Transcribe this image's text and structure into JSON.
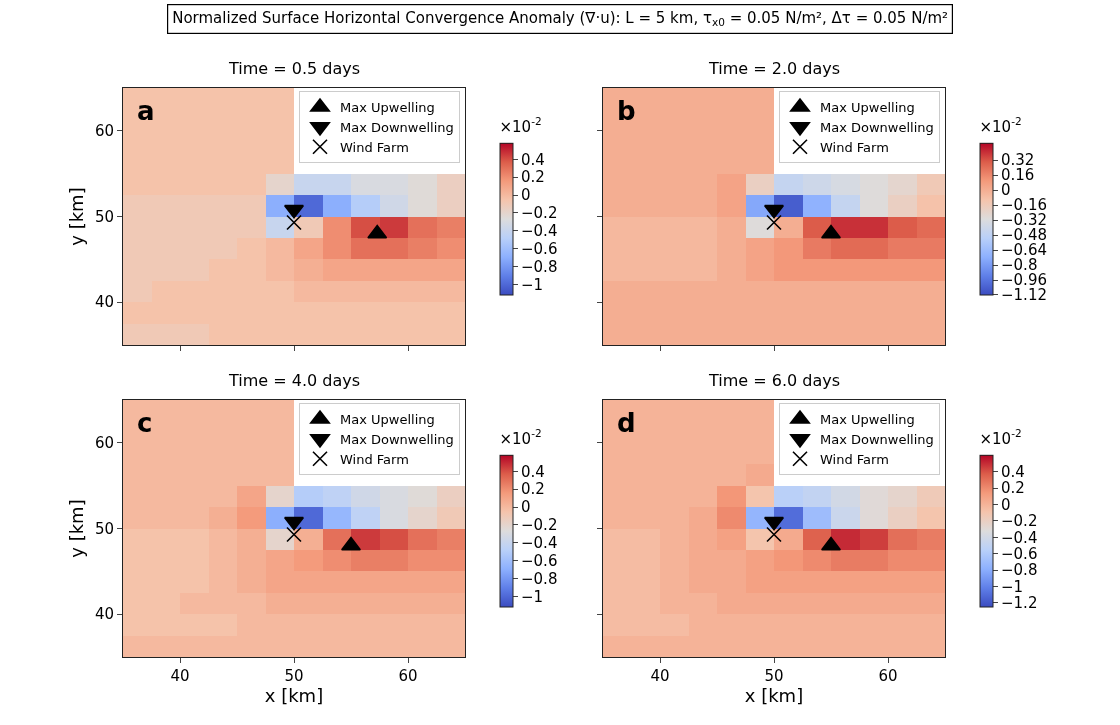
{
  "chart_data": [
    {
      "type": "heatmap",
      "title": "Time = 0.5 days",
      "ylabel": "y [km]",
      "clabel": "×10$^{-2}$",
      "annotations": [
        "Normalized Surface Horizontal Convergence Anomaly (∇·u): L = 5 km, τ$_{x0}$ = 0.05 N/m², Δτ = 0.05 N/m²",
        "a"
      ],
      "x": [
        36.25,
        38.75,
        41.25,
        43.75,
        46.25,
        48.75,
        51.25,
        53.75,
        56.25,
        58.75,
        61.25,
        63.75
      ],
      "y": [
        63.75,
        61.25,
        58.75,
        56.25,
        53.75,
        51.25,
        48.75,
        46.25,
        43.75,
        41.25,
        38.75,
        36.25
      ],
      "cells": [
        [
          -0.05,
          -0.05,
          -0.05,
          -0.05,
          -0.05,
          -0.05,
          null,
          null,
          null,
          null,
          null,
          null
        ],
        [
          -0.05,
          -0.05,
          -0.05,
          -0.05,
          -0.05,
          -0.05,
          null,
          null,
          null,
          null,
          null,
          null
        ],
        [
          -0.05,
          -0.05,
          -0.05,
          -0.05,
          -0.05,
          -0.05,
          null,
          null,
          null,
          null,
          null,
          null
        ],
        [
          -0.05,
          -0.05,
          -0.05,
          -0.05,
          -0.05,
          -0.05,
          null,
          null,
          null,
          null,
          null,
          null
        ],
        [
          -0.05,
          -0.05,
          -0.05,
          -0.05,
          -0.05,
          -0.2,
          -0.4,
          -0.4,
          -0.3,
          -0.3,
          -0.25,
          -0.15
        ],
        [
          -0.1,
          -0.1,
          -0.1,
          -0.1,
          -0.1,
          -0.7,
          -1.0,
          -0.7,
          -0.5,
          -0.35,
          -0.25,
          -0.15
        ],
        [
          -0.1,
          -0.1,
          -0.1,
          -0.1,
          -0.1,
          -0.4,
          -0.1,
          0.2,
          0.4,
          0.45,
          0.3,
          0.25
        ],
        [
          -0.1,
          -0.1,
          -0.1,
          -0.1,
          -0.05,
          0.0,
          0.1,
          0.2,
          0.3,
          0.3,
          0.25,
          0.2
        ],
        [
          -0.1,
          -0.1,
          -0.1,
          -0.05,
          -0.05,
          0.0,
          0.05,
          0.1,
          0.1,
          0.1,
          0.1,
          0.1
        ],
        [
          -0.1,
          -0.05,
          -0.05,
          -0.05,
          -0.05,
          -0.05,
          0.0,
          0.0,
          0.0,
          0.0,
          0.0,
          0.0
        ],
        [
          -0.05,
          -0.05,
          -0.05,
          -0.05,
          -0.05,
          -0.05,
          -0.05,
          -0.05,
          -0.05,
          -0.05,
          -0.05,
          -0.05
        ],
        [
          -0.1,
          -0.1,
          -0.1,
          -0.05,
          -0.05,
          -0.05,
          -0.05,
          -0.05,
          -0.05,
          -0.05,
          -0.05,
          -0.05
        ]
      ],
      "clim": [
        -1.12,
        0.58
      ],
      "cticks": [
        0.4,
        0.2,
        0.0,
        -0.2,
        -0.4,
        -0.6,
        -0.8,
        -1.0
      ],
      "xlim": [
        35,
        65
      ],
      "ylim": [
        35,
        65
      ],
      "xticks": [
        40,
        50,
        60
      ],
      "yticks": [
        40,
        50,
        60
      ],
      "tick_labels": "y",
      "legend": "top right",
      "series": [
        {
          "type": "scatter",
          "name": "Max Upwelling",
          "color": "#000000",
          "marker": "triangle",
          "x": [
            57.3
          ],
          "values": [
            48
          ]
        },
        {
          "type": "scatter",
          "name": "Max Downwelling",
          "color": "#000000",
          "marker": "triangle-down",
          "x": [
            50
          ],
          "values": [
            50.8
          ]
        },
        {
          "type": "scatter",
          "name": "Wind Farm",
          "color": "#000000",
          "marker": "cross",
          "x": [
            50
          ],
          "values": [
            49.3
          ]
        }
      ]
    },
    {
      "type": "heatmap",
      "title": "Time = 2.0 days",
      "clabel": "×10$^{-2}$",
      "annotations": [
        "b"
      ],
      "x": [
        36.25,
        38.75,
        41.25,
        43.75,
        46.25,
        48.75,
        51.25,
        53.75,
        56.25,
        58.75,
        61.25,
        63.75
      ],
      "y": [
        63.75,
        61.25,
        58.75,
        56.25,
        53.75,
        51.25,
        48.75,
        46.25,
        43.75,
        41.25,
        38.75,
        36.25
      ],
      "cells": [
        [
          0.0,
          0.0,
          0.0,
          0.0,
          0.0,
          0.0,
          null,
          null,
          null,
          null,
          null,
          null
        ],
        [
          0.0,
          0.0,
          0.0,
          0.0,
          0.0,
          0.0,
          null,
          null,
          null,
          null,
          null,
          null
        ],
        [
          0.0,
          0.0,
          0.0,
          0.0,
          0.0,
          0.0,
          null,
          null,
          null,
          null,
          null,
          null
        ],
        [
          0.0,
          0.0,
          0.0,
          0.0,
          0.0,
          0.0,
          null,
          null,
          null,
          null,
          null,
          null
        ],
        [
          0.0,
          0.0,
          0.0,
          0.0,
          0.05,
          -0.2,
          -0.45,
          -0.4,
          -0.35,
          -0.3,
          -0.25,
          -0.15
        ],
        [
          0.0,
          0.0,
          0.0,
          0.0,
          0.05,
          -0.75,
          -1.05,
          -0.7,
          -0.45,
          -0.3,
          -0.2,
          -0.1
        ],
        [
          -0.05,
          -0.05,
          -0.05,
          -0.05,
          0.0,
          -0.3,
          0.0,
          0.3,
          0.4,
          0.4,
          0.3,
          0.25
        ],
        [
          -0.05,
          -0.05,
          -0.05,
          -0.05,
          0.0,
          0.05,
          0.1,
          0.2,
          0.25,
          0.25,
          0.2,
          0.2
        ],
        [
          -0.05,
          -0.05,
          -0.05,
          -0.05,
          0.0,
          0.05,
          0.1,
          0.1,
          0.1,
          0.1,
          0.1,
          0.1
        ],
        [
          0.0,
          0.0,
          0.0,
          0.0,
          0.0,
          0.0,
          0.0,
          0.0,
          0.0,
          0.0,
          0.0,
          0.0
        ],
        [
          0.0,
          0.0,
          0.0,
          0.0,
          0.0,
          0.0,
          0.0,
          0.0,
          0.0,
          0.0,
          0.0,
          0.0
        ],
        [
          0.0,
          0.0,
          0.0,
          0.0,
          0.0,
          0.0,
          0.0,
          0.0,
          0.0,
          0.0,
          0.0,
          0.0
        ]
      ],
      "clim": [
        -1.12,
        0.5
      ],
      "cticks": [
        0.32,
        0.16,
        0.0,
        -0.16,
        -0.32,
        -0.48,
        -0.64,
        -0.8,
        -0.96,
        -1.12
      ],
      "xlim": [
        35,
        65
      ],
      "ylim": [
        35,
        65
      ],
      "xticks": [
        40,
        50,
        60
      ],
      "yticks": [
        40,
        50,
        60
      ],
      "tick_labels": false,
      "legend": "top right",
      "series": [
        {
          "type": "scatter",
          "name": "Max Upwelling",
          "color": "#000000",
          "marker": "triangle",
          "x": [
            55
          ],
          "values": [
            48
          ]
        },
        {
          "type": "scatter",
          "name": "Max Downwelling",
          "color": "#000000",
          "marker": "triangle-down",
          "x": [
            50
          ],
          "values": [
            50.8
          ]
        },
        {
          "type": "scatter",
          "name": "Wind Farm",
          "color": "#000000",
          "marker": "cross",
          "x": [
            50
          ],
          "values": [
            49.3
          ]
        }
      ]
    },
    {
      "type": "heatmap",
      "title": "Time = 4.0 days",
      "xlabel": "x [km]",
      "ylabel": "y [km]",
      "clabel": "×10$^{-2}$",
      "annotations": [
        "c"
      ],
      "x": [
        36.25,
        38.75,
        41.25,
        43.75,
        46.25,
        48.75,
        51.25,
        53.75,
        56.25,
        58.75,
        61.25,
        63.75
      ],
      "y": [
        63.75,
        61.25,
        58.75,
        56.25,
        53.75,
        51.25,
        48.75,
        46.25,
        43.75,
        41.25,
        38.75,
        36.25
      ],
      "cells": [
        [
          0.0,
          0.0,
          0.0,
          0.0,
          0.0,
          0.0,
          null,
          null,
          null,
          null,
          null,
          null
        ],
        [
          0.0,
          0.0,
          0.0,
          0.0,
          0.0,
          0.0,
          null,
          null,
          null,
          null,
          null,
          null
        ],
        [
          0.0,
          0.0,
          0.0,
          0.0,
          0.0,
          0.0,
          null,
          null,
          null,
          null,
          null,
          null
        ],
        [
          0.0,
          0.0,
          0.0,
          0.0,
          0.0,
          0.0,
          null,
          null,
          null,
          null,
          null,
          null
        ],
        [
          0.0,
          0.0,
          0.0,
          0.0,
          0.1,
          -0.2,
          -0.5,
          -0.45,
          -0.35,
          -0.3,
          -0.25,
          -0.15
        ],
        [
          0.0,
          0.0,
          0.0,
          0.05,
          0.15,
          -0.7,
          -1.0,
          -0.65,
          -0.45,
          -0.3,
          -0.2,
          -0.1
        ],
        [
          -0.05,
          -0.05,
          -0.05,
          0.0,
          0.05,
          -0.2,
          0.05,
          0.3,
          0.45,
          0.4,
          0.3,
          0.25
        ],
        [
          -0.05,
          -0.05,
          -0.05,
          0.0,
          0.05,
          0.1,
          0.15,
          0.2,
          0.25,
          0.25,
          0.2,
          0.2
        ],
        [
          -0.05,
          -0.05,
          -0.05,
          0.0,
          0.05,
          0.1,
          0.1,
          0.1,
          0.1,
          0.1,
          0.1,
          0.1
        ],
        [
          -0.05,
          -0.05,
          0.0,
          0.0,
          0.0,
          0.05,
          0.05,
          0.05,
          0.05,
          0.05,
          0.05,
          0.05
        ],
        [
          -0.05,
          -0.05,
          -0.05,
          -0.05,
          0.0,
          0.0,
          0.0,
          0.0,
          0.0,
          0.0,
          0.0,
          0.0
        ],
        [
          0.0,
          0.0,
          0.0,
          0.0,
          0.0,
          0.0,
          0.0,
          0.0,
          0.0,
          0.0,
          0.0,
          0.0
        ]
      ],
      "clim": [
        -1.12,
        0.58
      ],
      "cticks": [
        0.4,
        0.2,
        0.0,
        -0.2,
        -0.4,
        -0.6,
        -0.8,
        -1.0
      ],
      "xlim": [
        35,
        65
      ],
      "ylim": [
        35,
        65
      ],
      "xticks": [
        40,
        50,
        60
      ],
      "yticks": [
        40,
        50,
        60
      ],
      "legend": "top right",
      "series": [
        {
          "type": "scatter",
          "name": "Max Upwelling",
          "color": "#000000",
          "marker": "triangle",
          "x": [
            55
          ],
          "values": [
            48
          ]
        },
        {
          "type": "scatter",
          "name": "Max Downwelling",
          "color": "#000000",
          "marker": "triangle-down",
          "x": [
            50
          ],
          "values": [
            50.8
          ]
        },
        {
          "type": "scatter",
          "name": "Wind Farm",
          "color": "#000000",
          "marker": "cross",
          "x": [
            50
          ],
          "values": [
            49.3
          ]
        }
      ]
    },
    {
      "type": "heatmap",
      "title": "Time = 6.0 days",
      "xlabel": "x [km]",
      "clabel": "×10$^{-2}$",
      "annotations": [
        "d"
      ],
      "x": [
        36.25,
        38.75,
        41.25,
        43.75,
        46.25,
        48.75,
        51.25,
        53.75,
        56.25,
        58.75,
        61.25,
        63.75
      ],
      "y": [
        63.75,
        61.25,
        58.75,
        56.25,
        53.75,
        51.25,
        48.75,
        46.25,
        43.75,
        41.25,
        38.75,
        36.25
      ],
      "cells": [
        [
          0.0,
          0.0,
          0.0,
          0.0,
          0.0,
          0.0,
          null,
          null,
          null,
          null,
          null,
          null
        ],
        [
          0.0,
          0.0,
          0.0,
          0.0,
          0.0,
          0.0,
          null,
          null,
          null,
          null,
          null,
          null
        ],
        [
          0.0,
          0.0,
          0.0,
          0.0,
          0.0,
          0.0,
          null,
          null,
          null,
          null,
          null,
          null
        ],
        [
          0.0,
          0.0,
          0.0,
          0.0,
          0.0,
          0.05,
          null,
          null,
          null,
          null,
          null,
          null
        ],
        [
          0.0,
          0.0,
          0.0,
          0.0,
          0.15,
          -0.1,
          -0.55,
          -0.5,
          -0.4,
          -0.3,
          -0.25,
          -0.15
        ],
        [
          0.0,
          0.0,
          0.0,
          0.05,
          0.2,
          -0.75,
          -1.1,
          -0.7,
          -0.45,
          -0.3,
          -0.2,
          -0.1
        ],
        [
          -0.05,
          -0.05,
          0.0,
          0.05,
          0.1,
          -0.1,
          0.05,
          0.35,
          0.5,
          0.45,
          0.3,
          0.25
        ],
        [
          -0.05,
          -0.05,
          0.0,
          0.05,
          0.05,
          0.1,
          0.15,
          0.2,
          0.25,
          0.25,
          0.2,
          0.2
        ],
        [
          -0.05,
          -0.05,
          0.0,
          0.05,
          0.05,
          0.1,
          0.1,
          0.1,
          0.1,
          0.1,
          0.1,
          0.1
        ],
        [
          -0.05,
          -0.05,
          0.0,
          0.0,
          0.05,
          0.05,
          0.05,
          0.05,
          0.05,
          0.05,
          0.05,
          0.05
        ],
        [
          -0.05,
          -0.05,
          -0.05,
          0.0,
          0.0,
          0.0,
          0.0,
          0.0,
          0.0,
          0.0,
          0.0,
          0.0
        ],
        [
          0.0,
          0.0,
          0.0,
          0.0,
          0.0,
          0.0,
          0.0,
          0.0,
          0.0,
          0.0,
          0.0,
          0.0
        ]
      ],
      "clim": [
        -1.25,
        0.6
      ],
      "cticks": [
        0.4,
        0.2,
        0.0,
        -0.2,
        -0.4,
        -0.6,
        -0.8,
        -1.0,
        -1.2
      ],
      "xlim": [
        35,
        65
      ],
      "ylim": [
        35,
        65
      ],
      "xticks": [
        40,
        50,
        60
      ],
      "yticks": [
        40,
        50,
        60
      ],
      "tick_labels": "x",
      "legend": "top right",
      "series": [
        {
          "type": "scatter",
          "name": "Max Upwelling",
          "color": "#000000",
          "marker": "triangle",
          "x": [
            55
          ],
          "values": [
            48
          ]
        },
        {
          "type": "scatter",
          "name": "Max Downwelling",
          "color": "#000000",
          "marker": "triangle-down",
          "x": [
            50
          ],
          "values": [
            50.8
          ]
        },
        {
          "type": "scatter",
          "name": "Wind Farm",
          "color": "#000000",
          "marker": "cross",
          "x": [
            50
          ],
          "values": [
            49.3
          ]
        }
      ]
    }
  ]
}
